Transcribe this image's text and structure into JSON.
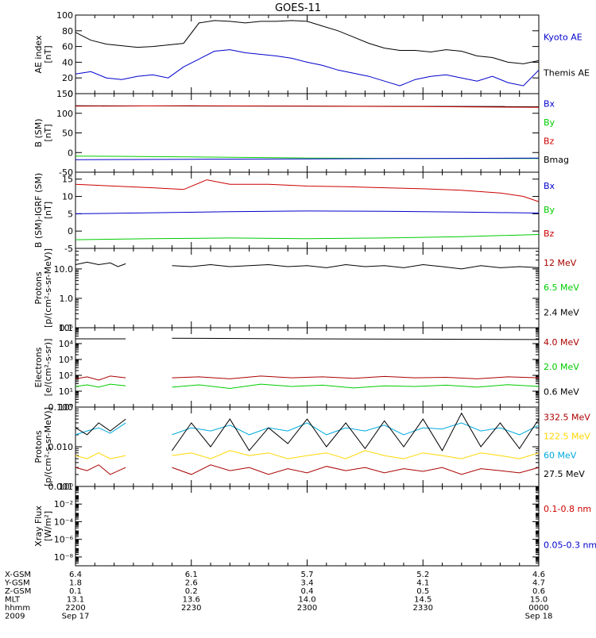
{
  "title": "GOES-11",
  "colors": {
    "black": "#000000",
    "red": "#cc0000",
    "green": "#00cc00",
    "blue": "#0000cc",
    "cyan": "#00aadd",
    "yellow": "#ffd700",
    "darkred": "#aa0000",
    "frame": "#000000"
  },
  "footer": {
    "rows": [
      {
        "label": "X-GSM",
        "values": [
          "6.4",
          "6.1",
          "5.7",
          "5.2",
          "4.6"
        ]
      },
      {
        "label": "Y-GSM",
        "values": [
          "1.8",
          "2.6",
          "3.4",
          "4.1",
          "4.7"
        ]
      },
      {
        "label": "Z-GSM",
        "values": [
          "0.1",
          "0.2",
          "0.4",
          "0.5",
          "0.6"
        ]
      },
      {
        "label": "MLT",
        "values": [
          "13.1",
          "13.6",
          "14.0",
          "14.5",
          "15.0"
        ]
      },
      {
        "label": "hhmm",
        "values": [
          "2200",
          "2230",
          "2300",
          "2330",
          "0000"
        ]
      },
      {
        "label": "2009",
        "values": [
          "Sep 17",
          "",
          "",
          "",
          "Sep 18"
        ]
      }
    ]
  },
  "chart_data": [
    {
      "type": "line",
      "ylabel": "AE index\n[nT]",
      "ylim": [
        0,
        100
      ],
      "yticks": [
        "0",
        "20",
        "40",
        "60",
        "80",
        "100"
      ],
      "yscale": "linear",
      "xlim": [
        0,
        120
      ],
      "legend": [
        {
          "name": "Kyoto AE",
          "color": "blue"
        },
        {
          "name": "Themis AE",
          "color": "black"
        }
      ],
      "series": [
        {
          "name": "Themis AE",
          "color": "black",
          "x": [
            0,
            4,
            8,
            12,
            16,
            20,
            24,
            28,
            32,
            36,
            40,
            44,
            48,
            52,
            56,
            60,
            64,
            68,
            72,
            76,
            80,
            84,
            88,
            92,
            96,
            100,
            104,
            108,
            112,
            116,
            120
          ],
          "y": [
            78,
            68,
            63,
            61,
            59,
            60,
            62,
            64,
            90,
            93,
            92,
            90,
            92,
            92,
            93,
            92,
            86,
            80,
            72,
            64,
            58,
            55,
            55,
            53,
            56,
            54,
            48,
            46,
            40,
            38,
            42
          ]
        },
        {
          "name": "Kyoto AE",
          "color": "blue",
          "x": [
            0,
            4,
            8,
            12,
            16,
            20,
            24,
            28,
            32,
            36,
            40,
            44,
            48,
            52,
            56,
            60,
            64,
            68,
            72,
            76,
            80,
            84,
            88,
            92,
            96,
            100,
            104,
            108,
            112,
            116,
            120
          ],
          "y": [
            25,
            28,
            20,
            18,
            22,
            24,
            20,
            34,
            44,
            54,
            56,
            52,
            50,
            48,
            45,
            40,
            36,
            30,
            26,
            22,
            16,
            10,
            18,
            22,
            24,
            20,
            16,
            22,
            14,
            10,
            30
          ]
        }
      ]
    },
    {
      "type": "line",
      "ylabel": "B (SM)\n[nT]",
      "ylim": [
        -50,
        150
      ],
      "yticks": [
        "-50",
        "0",
        "50",
        "100",
        "150"
      ],
      "yscale": "linear",
      "xlim": [
        0,
        120
      ],
      "legend": [
        {
          "name": "Bx",
          "color": "blue"
        },
        {
          "name": "By",
          "color": "green"
        },
        {
          "name": "Bz",
          "color": "red"
        },
        {
          "name": "Bmag",
          "color": "black"
        }
      ],
      "series": [
        {
          "name": "Bmag",
          "color": "black",
          "x": [
            0,
            120
          ],
          "y": [
            119,
            117
          ]
        },
        {
          "name": "Bz",
          "color": "red",
          "x": [
            0,
            30,
            60,
            90,
            120
          ],
          "y": [
            118,
            119,
            118,
            117,
            115
          ]
        },
        {
          "name": "By",
          "color": "green",
          "x": [
            0,
            30,
            60,
            90,
            120
          ],
          "y": [
            -9,
            -11,
            -14,
            -15,
            -15
          ]
        },
        {
          "name": "Bx",
          "color": "blue",
          "x": [
            0,
            30,
            60,
            90,
            120
          ],
          "y": [
            -18,
            -17,
            -16,
            -15,
            -14
          ]
        }
      ]
    },
    {
      "type": "line",
      "ylabel": "B (SM)-IGRF (SM)\n[nT]",
      "ylim": [
        -5,
        17
      ],
      "yticks": [
        "-5",
        "0",
        "5",
        "10",
        "15"
      ],
      "yscale": "linear",
      "xlim": [
        0,
        120
      ],
      "legend": [
        {
          "name": "Bx",
          "color": "blue"
        },
        {
          "name": "By",
          "color": "green"
        },
        {
          "name": "Bz",
          "color": "red"
        }
      ],
      "series": [
        {
          "name": "Bz",
          "color": "red",
          "x": [
            0,
            10,
            20,
            28,
            34,
            40,
            50,
            60,
            70,
            80,
            90,
            100,
            110,
            116,
            120
          ],
          "y": [
            13.5,
            13,
            12.5,
            12,
            14.8,
            13.5,
            13.5,
            13,
            12.8,
            12.5,
            12.2,
            11.8,
            11,
            10,
            8.5
          ]
        },
        {
          "name": "Bx",
          "color": "blue",
          "x": [
            0,
            20,
            40,
            60,
            80,
            100,
            120
          ],
          "y": [
            5,
            5.3,
            5.6,
            5.8,
            5.7,
            5.5,
            5.2
          ]
        },
        {
          "name": "By",
          "color": "green",
          "x": [
            0,
            20,
            40,
            60,
            80,
            100,
            120
          ],
          "y": [
            -2.5,
            -2.2,
            -2,
            -2.2,
            -2,
            -1.6,
            -1
          ]
        }
      ]
    },
    {
      "type": "line",
      "ylabel": "Protons\n[p/(cm²-s-sr-MeV)]",
      "ylim": [
        0.1,
        50
      ],
      "yticks": [
        "0.1",
        "1.0",
        "10.0"
      ],
      "yscale": "log",
      "xlim": [
        0,
        120
      ],
      "legend": [
        {
          "name": "12 MeV",
          "color": "darkred"
        },
        {
          "name": "6.5 MeV",
          "color": "green"
        },
        {
          "name": "2.4 MeV",
          "color": "black"
        }
      ],
      "series": [
        {
          "name": "2.4 MeV",
          "color": "black",
          "x": [
            0,
            3,
            6,
            9,
            11,
            13
          ],
          "y": [
            14,
            17,
            14,
            16,
            12,
            15
          ]
        },
        {
          "name": "2.4 MeV",
          "color": "black",
          "x": [
            25,
            30,
            35,
            40,
            45,
            50,
            55,
            60,
            65,
            70,
            75,
            80,
            85,
            90,
            95,
            100,
            105,
            110,
            115,
            120
          ],
          "y": [
            13,
            12,
            14,
            12,
            13,
            14,
            12,
            13,
            11,
            14,
            12,
            13,
            11,
            14,
            12,
            10,
            13,
            11,
            12,
            11
          ]
        }
      ]
    },
    {
      "type": "line",
      "ylabel": "Electrons\n[e/(cm²-s-sr)]",
      "ylim": [
        1,
        100000
      ],
      "yticks": [
        "10⁰",
        "10¹",
        "10²",
        "10³",
        "10⁴",
        "10⁵"
      ],
      "yscale": "log",
      "xlim": [
        0,
        120
      ],
      "legend": [
        {
          "name": "4.0 MeV",
          "color": "darkred"
        },
        {
          "name": "2.0 MeV",
          "color": "green"
        },
        {
          "name": "0.6 MeV",
          "color": "black"
        }
      ],
      "series": [
        {
          "name": "0.6 MeV",
          "color": "black",
          "x": [
            0,
            13
          ],
          "y": [
            20000,
            20000
          ]
        },
        {
          "name": "0.6 MeV",
          "color": "black",
          "x": [
            25,
            60,
            90,
            120
          ],
          "y": [
            22000,
            20000,
            19000,
            18000
          ]
        },
        {
          "name": "4.0 MeV",
          "color": "darkred",
          "x": [
            0,
            3,
            6,
            9,
            13
          ],
          "y": [
            60,
            80,
            50,
            90,
            70
          ]
        },
        {
          "name": "4.0 MeV",
          "color": "darkred",
          "x": [
            25,
            32,
            40,
            48,
            56,
            64,
            72,
            80,
            88,
            96,
            104,
            112,
            120
          ],
          "y": [
            70,
            80,
            60,
            90,
            70,
            80,
            65,
            85,
            70,
            75,
            60,
            80,
            70
          ]
        },
        {
          "name": "2.0 MeV",
          "color": "green",
          "x": [
            0,
            3,
            6,
            9,
            13
          ],
          "y": [
            20,
            25,
            18,
            28,
            22
          ]
        },
        {
          "name": "2.0 MeV",
          "color": "green",
          "x": [
            25,
            32,
            40,
            48,
            56,
            64,
            72,
            80,
            88,
            96,
            104,
            112,
            120
          ],
          "y": [
            18,
            25,
            15,
            28,
            20,
            24,
            16,
            22,
            20,
            24,
            18,
            26,
            20
          ]
        }
      ]
    },
    {
      "type": "line",
      "ylabel": "Protons\n[p/(cm²-s-sr-MeV)]",
      "ylim": [
        0.001,
        0.1
      ],
      "yticks": [
        "0.001",
        "0.010",
        "0.100"
      ],
      "yscale": "log",
      "xlim": [
        0,
        120
      ],
      "legend": [
        {
          "name": "332.5 MeV",
          "color": "darkred"
        },
        {
          "name": "122.5 MeV",
          "color": "yellow"
        },
        {
          "name": "60 MeV",
          "color": "cyan"
        },
        {
          "name": "27.5 MeV",
          "color": "black"
        }
      ],
      "series": [
        {
          "name": "60 MeV",
          "color": "cyan",
          "x": [
            0,
            3,
            6,
            9,
            13
          ],
          "y": [
            0.02,
            0.025,
            0.03,
            0.022,
            0.04
          ]
        },
        {
          "name": "60 MeV",
          "color": "cyan",
          "x": [
            25,
            30,
            35,
            40,
            45,
            50,
            55,
            60,
            65,
            70,
            75,
            80,
            85,
            90,
            95,
            100,
            105,
            110,
            115,
            120
          ],
          "y": [
            0.02,
            0.03,
            0.025,
            0.035,
            0.02,
            0.03,
            0.025,
            0.04,
            0.02,
            0.03,
            0.025,
            0.035,
            0.02,
            0.03,
            0.028,
            0.04,
            0.025,
            0.03,
            0.02,
            0.035
          ]
        },
        {
          "name": "27.5 MeV",
          "color": "black",
          "x": [
            0,
            3,
            6,
            9,
            13
          ],
          "y": [
            0.03,
            0.02,
            0.04,
            0.025,
            0.05
          ]
        },
        {
          "name": "27.5 MeV",
          "color": "black",
          "x": [
            25,
            30,
            35,
            40,
            45,
            50,
            55,
            60,
            65,
            70,
            75,
            80,
            85,
            90,
            95,
            100,
            105,
            110,
            115,
            120
          ],
          "y": [
            0.008,
            0.04,
            0.01,
            0.05,
            0.008,
            0.03,
            0.012,
            0.05,
            0.01,
            0.04,
            0.009,
            0.045,
            0.01,
            0.05,
            0.008,
            0.07,
            0.01,
            0.04,
            0.009,
            0.05
          ]
        },
        {
          "name": "122.5 MeV",
          "color": "yellow",
          "x": [
            0,
            3,
            6,
            9,
            13
          ],
          "y": [
            0.006,
            0.005,
            0.007,
            0.005,
            0.006
          ]
        },
        {
          "name": "122.5 MeV",
          "color": "yellow",
          "x": [
            25,
            30,
            35,
            40,
            45,
            50,
            55,
            60,
            65,
            70,
            75,
            80,
            85,
            90,
            95,
            100,
            105,
            110,
            115,
            120
          ],
          "y": [
            0.006,
            0.007,
            0.005,
            0.008,
            0.006,
            0.007,
            0.005,
            0.006,
            0.007,
            0.005,
            0.008,
            0.006,
            0.005,
            0.007,
            0.006,
            0.005,
            0.007,
            0.006,
            0.005,
            0.007
          ]
        },
        {
          "name": "332.5 MeV",
          "color": "darkred",
          "x": [
            0,
            3,
            6,
            9,
            13
          ],
          "y": [
            0.003,
            0.0025,
            0.0035,
            0.002,
            0.003
          ]
        },
        {
          "name": "332.5 MeV",
          "color": "darkred",
          "x": [
            25,
            30,
            35,
            40,
            45,
            50,
            55,
            60,
            65,
            70,
            75,
            80,
            85,
            90,
            95,
            100,
            105,
            110,
            115,
            120
          ],
          "y": [
            0.003,
            0.002,
            0.0035,
            0.0025,
            0.003,
            0.002,
            0.0028,
            0.0022,
            0.0032,
            0.0025,
            0.003,
            0.0022,
            0.0028,
            0.0024,
            0.003,
            0.002,
            0.0028,
            0.0025,
            0.0022,
            0.003
          ]
        }
      ]
    },
    {
      "type": "line",
      "ylabel": "Xray Flux\n[W/m²]",
      "ylim": [
        1e-09,
        1
      ],
      "yticks": [
        "10⁻⁸",
        "10⁻⁶",
        "10⁻⁴",
        "10⁻²",
        "10⁰"
      ],
      "yscale": "log",
      "xlim": [
        0,
        120
      ],
      "legend": [
        {
          "name": "0.1-0.8 nm",
          "color": "red"
        },
        {
          "name": "0.05-0.3 nm",
          "color": "blue"
        }
      ],
      "series": []
    }
  ]
}
